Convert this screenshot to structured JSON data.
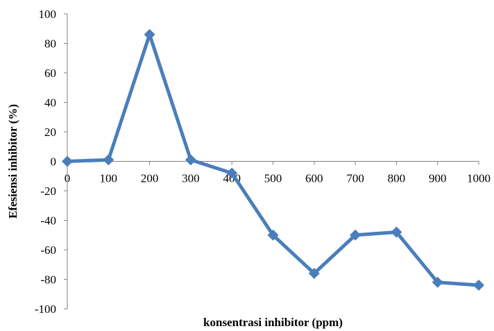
{
  "chart_data": {
    "type": "line",
    "title": "",
    "xlabel": "konsentrasi inhibitor (ppm)",
    "ylabel": "Efesiensi inhibitor (%)",
    "x": [
      0,
      100,
      200,
      300,
      400,
      500,
      600,
      700,
      800,
      900,
      1000
    ],
    "x_ticks": [
      "0",
      "100",
      "200",
      "300",
      "400",
      "500",
      "600",
      "700",
      "800",
      "900",
      "1000"
    ],
    "y_ticks": [
      "100",
      "80",
      "60",
      "40",
      "20",
      "0",
      "-20",
      "-40",
      "-60",
      "-80",
      "-100"
    ],
    "ylim": [
      -100,
      100
    ],
    "series": [
      {
        "values": [
          0,
          1,
          86,
          1,
          -8,
          -50,
          -76,
          -50,
          -48,
          -82,
          -84
        ],
        "color": "#4A7EBB",
        "marker": "diamond"
      }
    ],
    "grid": false,
    "legend": "none"
  }
}
